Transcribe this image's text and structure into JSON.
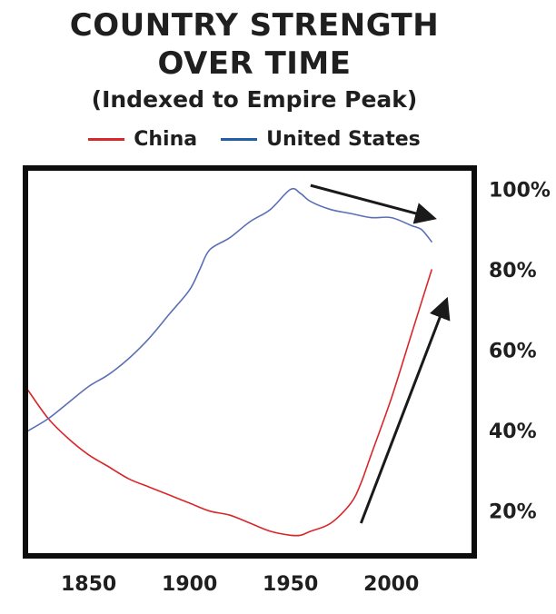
{
  "chart_data": {
    "type": "line",
    "title_line1": "COUNTRY STRENGTH",
    "title_line2": "OVER TIME",
    "subtitle": "(Indexed to Empire Peak)",
    "xlabel": "",
    "ylabel": "",
    "xlim": [
      1820,
      2040
    ],
    "ylim": [
      10,
      106
    ],
    "x_ticks": [
      1850,
      1900,
      1950,
      2000
    ],
    "y_ticks": [
      20,
      40,
      60,
      80,
      100
    ],
    "y_tick_labels": [
      "20%",
      "40%",
      "60%",
      "80%",
      "100%"
    ],
    "y_axis_side": "right",
    "grid": false,
    "legend_position": "top",
    "series": [
      {
        "name": "China",
        "color": "#d9262a",
        "x": [
          1820,
          1830,
          1840,
          1850,
          1860,
          1870,
          1880,
          1890,
          1900,
          1910,
          1920,
          1930,
          1940,
          1950,
          1955,
          1960,
          1970,
          1980,
          1985,
          1990,
          2000,
          2010,
          2020
        ],
        "y": [
          50,
          43,
          38,
          34,
          31,
          28,
          26,
          24,
          22,
          20,
          19,
          17,
          15,
          14,
          14,
          15,
          17,
          22,
          27,
          34,
          48,
          64,
          80
        ]
      },
      {
        "name": "United States",
        "color": "#5b6fb5",
        "x": [
          1820,
          1830,
          1840,
          1850,
          1860,
          1870,
          1880,
          1890,
          1900,
          1905,
          1910,
          1920,
          1930,
          1940,
          1950,
          1955,
          1960,
          1970,
          1980,
          1990,
          2000,
          2010,
          2015,
          2020
        ],
        "y": [
          40,
          43,
          47,
          51,
          54,
          58,
          63,
          69,
          75,
          80,
          85,
          88,
          92,
          95,
          100,
          99,
          97,
          95,
          94,
          93,
          93,
          91,
          90,
          87
        ]
      }
    ],
    "annotations": [
      {
        "type": "arrow",
        "from": [
          1960,
          101
        ],
        "to": [
          2020,
          93
        ],
        "color": "#1a1a1a"
      },
      {
        "type": "arrow",
        "from": [
          1985,
          17
        ],
        "to": [
          2027,
          72
        ],
        "color": "#1a1a1a"
      }
    ]
  }
}
